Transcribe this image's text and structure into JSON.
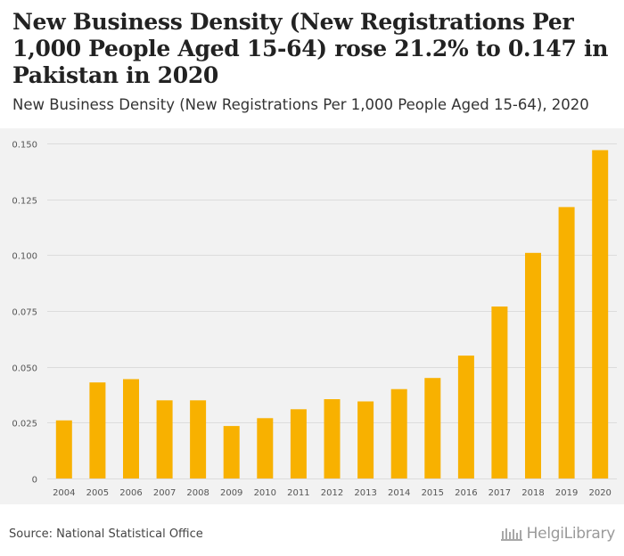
{
  "header": {
    "title": "New Business Density (New Registrations Per 1,000 People Aged 15-64) rose 21.2% to 0.147 in Pakistan in 2020",
    "subtitle": "New Business Density (New Registrations Per 1,000 People Aged 15-64), 2020"
  },
  "footer": {
    "source": "Source: National Statistical Office",
    "brand": "HelgiLibrary"
  },
  "colors": {
    "bar": "#f8b100",
    "grid": "#dcdcdc",
    "tick_text": "#555555"
  },
  "chart_data": {
    "type": "bar",
    "categories": [
      "2004",
      "2005",
      "2006",
      "2007",
      "2008",
      "2009",
      "2010",
      "2011",
      "2012",
      "2013",
      "2014",
      "2015",
      "2016",
      "2017",
      "2018",
      "2019",
      "2020"
    ],
    "values": [
      0.026,
      0.043,
      0.0445,
      0.035,
      0.035,
      0.0235,
      0.027,
      0.031,
      0.0355,
      0.0345,
      0.04,
      0.045,
      0.055,
      0.077,
      0.101,
      0.1215,
      0.147
    ],
    "ylim": [
      0,
      0.15
    ],
    "yticks": [
      0,
      0.025,
      0.05,
      0.075,
      0.1,
      0.125,
      0.15
    ],
    "ytick_labels": [
      "0",
      "0.025",
      "0.050",
      "0.075",
      "0.100",
      "0.125",
      "0.150"
    ],
    "grid": true,
    "legend": "none"
  }
}
